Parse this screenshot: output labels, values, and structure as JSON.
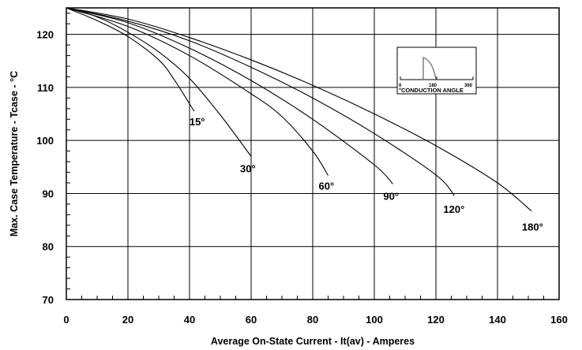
{
  "chart_data": {
    "type": "line",
    "title": "",
    "xlabel": "Average On-State Current - It(av) - Amperes",
    "ylabel": "Max. Case Temperature - Tcase - °C",
    "xlim": [
      0,
      160
    ],
    "ylim": [
      70,
      125
    ],
    "x_ticks": [
      0,
      20,
      40,
      60,
      80,
      100,
      120,
      140,
      160
    ],
    "y_ticks": [
      70,
      80,
      90,
      100,
      110,
      120
    ],
    "grid": true,
    "series": [
      {
        "label": "15°",
        "x": [
          0,
          10,
          20,
          30,
          35,
          41.5
        ],
        "y": [
          125,
          122.6,
          119.6,
          115.2,
          111.5,
          105.5
        ]
      },
      {
        "label": "30°",
        "x": [
          0,
          10,
          20,
          30,
          40,
          50,
          60
        ],
        "y": [
          125,
          123.3,
          120.4,
          116.7,
          111.7,
          104.8,
          97
        ]
      },
      {
        "label": "60°",
        "x": [
          0,
          20,
          40,
          60,
          70,
          80,
          85
        ],
        "y": [
          125,
          121.5,
          116,
          108.8,
          104.5,
          98,
          93.4
        ]
      },
      {
        "label": "90°",
        "x": [
          0,
          20,
          40,
          60,
          80,
          100,
          106
        ],
        "y": [
          125,
          122.2,
          117.4,
          111.3,
          104,
          95.4,
          91.8
        ]
      },
      {
        "label": "120°",
        "x": [
          0,
          20,
          40,
          60,
          80,
          100,
          120,
          126
        ],
        "y": [
          125,
          122.5,
          118.8,
          113.8,
          108,
          101.3,
          93.5,
          89.6
        ]
      },
      {
        "label": "180°",
        "x": [
          0,
          20,
          40,
          60,
          80,
          100,
          120,
          140,
          151
        ],
        "y": [
          125,
          122.9,
          119.4,
          115.2,
          110.4,
          105,
          99,
          92,
          86.7
        ]
      }
    ],
    "inset": {
      "title": "°CONDUCTION ANGLE",
      "ticks": [
        "0",
        "180",
        "360"
      ]
    }
  }
}
